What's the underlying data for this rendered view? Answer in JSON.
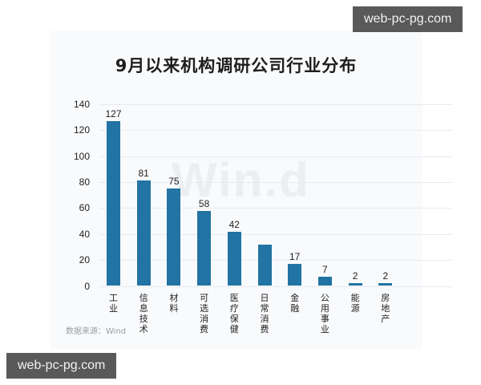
{
  "watermarks": {
    "top_right": "web-pc-pg.com",
    "bottom_left": "web-pc-pg.com",
    "chart_bg": "Win.d"
  },
  "source": "数据来源：Wind",
  "chart_data": {
    "type": "bar",
    "title": "9月以来机构调研公司行业分布",
    "categories": [
      "工业",
      "信息技术",
      "材料",
      "可选消费",
      "医疗保健",
      "日常消费",
      "金融",
      "公用事业",
      "能源",
      "房地产"
    ],
    "values": [
      127,
      81,
      75,
      58,
      42,
      32,
      17,
      7,
      2,
      2
    ],
    "value_labels": [
      "127",
      "81",
      "75",
      "58",
      "42",
      "",
      "17",
      "7",
      "2",
      "2"
    ],
    "xlabel": "",
    "ylabel": "",
    "ylim": [
      0,
      140
    ],
    "yticks": [
      0,
      20,
      40,
      60,
      80,
      100,
      120,
      140
    ],
    "grid": true,
    "legend": "none",
    "bar_color": "#2174a3"
  }
}
